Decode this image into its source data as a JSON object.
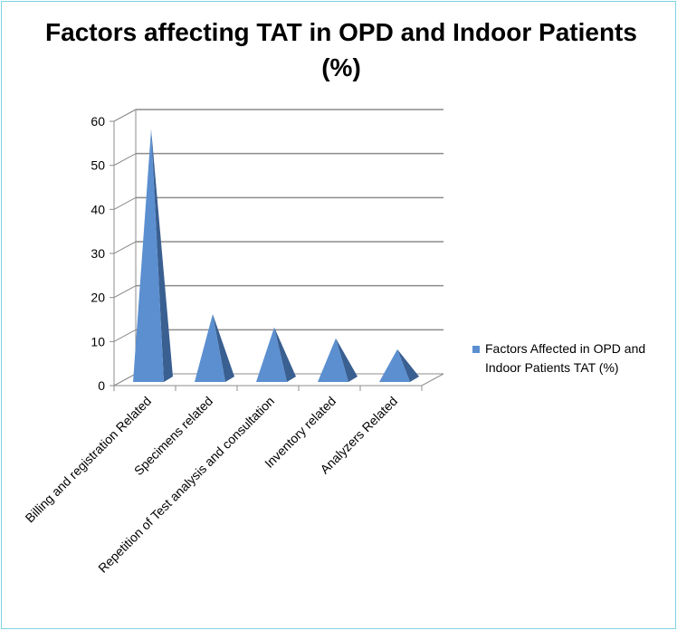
{
  "chart_data": {
    "type": "bar",
    "title": "Factors affecting TAT in OPD and Indoor Patients (%)",
    "categories": [
      "Billing and registration Related",
      "Specimens related",
      "Repetition of Test analysis and consultation",
      "Inventory related",
      "Analyzers Related"
    ],
    "series": [
      {
        "name": "Factors Affected in OPD and Indoor Patients TAT (%)",
        "values": [
          57,
          15,
          12,
          9.5,
          7
        ]
      }
    ],
    "ylim": [
      0,
      60
    ],
    "yticks": [
      "0",
      "10",
      "20",
      "30",
      "40",
      "50",
      "60"
    ],
    "grid": true,
    "legend_position": "right",
    "colors": {
      "front": "#5b8fd0",
      "side": "#3a5f91",
      "grid": "#8c8c8c",
      "border": "#7fd3e3"
    }
  }
}
